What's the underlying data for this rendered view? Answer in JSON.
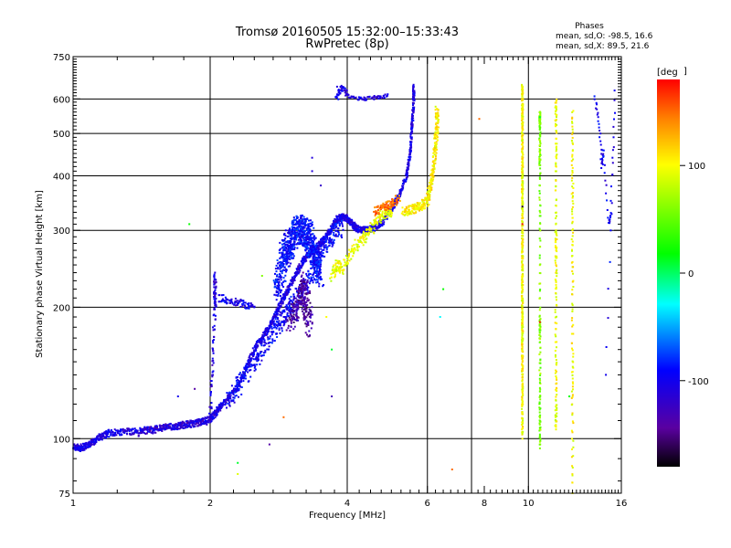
{
  "chart_data": {
    "type": "scatter",
    "title": "Tromsø 20160505 15:32:00–15:33:43",
    "subtitle": "RwPretec (8p)",
    "xlabel": "Frequency [MHz]",
    "ylabel": "Stationary phase Virtual Height [km]",
    "x_scale": "log",
    "y_scale": "log",
    "xlim": [
      1,
      16
    ],
    "ylim": [
      75,
      750
    ],
    "x_ticks": [
      {
        "value": 1,
        "label": "1"
      },
      {
        "value": 2,
        "label": "2"
      },
      {
        "value": 4,
        "label": "4"
      },
      {
        "value": 6,
        "label": "6"
      },
      {
        "value": 8,
        "label": "8"
      },
      {
        "value": 10,
        "label": "10"
      },
      {
        "value": 16,
        "label": "16"
      }
    ],
    "y_ticks": [
      {
        "value": 75,
        "label": "75"
      },
      {
        "value": 100,
        "label": "100"
      },
      {
        "value": 200,
        "label": "200"
      },
      {
        "value": 300,
        "label": "300"
      },
      {
        "value": 400,
        "label": "400"
      },
      {
        "value": 500,
        "label": "500"
      },
      {
        "value": 600,
        "label": "600"
      },
      {
        "value": 750,
        "label": "750"
      }
    ],
    "x_grid": [
      2,
      4,
      6,
      7.5,
      10
    ],
    "y_grid": [
      100,
      200,
      300,
      400,
      500,
      600
    ],
    "grid": true,
    "legend_title": "Phases",
    "legend_lines": [
      "mean, sd,O: -98.5, 16.6",
      "mean, sd,X:  89.5, 21.6"
    ],
    "legend_placement": "top-right",
    "colorbar": {
      "label": "[deg",
      "range": [
        -180,
        180
      ],
      "ticks": [
        {
          "value": 100,
          "label": "100"
        },
        {
          "value": 0,
          "label": "0"
        },
        {
          "value": -100,
          "label": "-100"
        }
      ]
    },
    "traces": [
      {
        "points": [
          [
            1.0,
            96
          ],
          [
            1.03,
            95
          ],
          [
            1.06,
            96
          ],
          [
            1.1,
            98
          ],
          [
            1.15,
            101
          ],
          [
            1.2,
            103
          ],
          [
            1.3,
            104
          ],
          [
            1.4,
            104
          ],
          [
            1.5,
            105
          ],
          [
            1.6,
            106
          ],
          [
            1.7,
            107
          ],
          [
            1.8,
            108
          ],
          [
            1.9,
            109
          ],
          [
            2.0,
            111
          ],
          [
            2.05,
            114
          ],
          [
            2.1,
            118
          ],
          [
            2.2,
            125
          ],
          [
            2.3,
            132
          ],
          [
            2.4,
            145
          ],
          [
            2.5,
            160
          ],
          [
            2.6,
            170
          ],
          [
            2.7,
            180
          ],
          [
            2.8,
            195
          ],
          [
            2.9,
            210
          ],
          [
            3.0,
            225
          ],
          [
            3.1,
            240
          ],
          [
            3.2,
            255
          ],
          [
            3.3,
            265
          ],
          [
            3.4,
            272
          ],
          [
            3.5,
            280
          ],
          [
            3.6,
            290
          ],
          [
            3.7,
            305
          ],
          [
            3.8,
            318
          ],
          [
            3.9,
            322
          ],
          [
            4.0,
            320
          ],
          [
            4.1,
            310
          ],
          [
            4.2,
            303
          ],
          [
            4.4,
            300
          ],
          [
            4.6,
            305
          ],
          [
            4.8,
            315
          ],
          [
            5.0,
            335
          ],
          [
            5.2,
            360
          ],
          [
            5.4,
            400
          ],
          [
            5.5,
            450
          ],
          [
            5.55,
            520
          ],
          [
            5.6,
            600
          ],
          [
            5.6,
            640
          ]
        ],
        "phase": -105,
        "spread": [
          0.004,
          0.018
        ],
        "copies": 4
      },
      {
        "points": [
          [
            1.4,
            103
          ],
          [
            1.6,
            106
          ],
          [
            1.8,
            108
          ],
          [
            2.0,
            110
          ]
        ],
        "phase": -120,
        "spread": [
          0.006,
          0.02
        ],
        "copies": 2
      },
      {
        "points": [
          [
            2.0,
            112
          ],
          [
            2.05,
            200
          ],
          [
            2.05,
            240
          ]
        ],
        "phase": -110,
        "spread": [
          0.006,
          0.02
        ],
        "copies": 5
      },
      {
        "points": [
          [
            2.1,
            210
          ],
          [
            2.3,
            205
          ],
          [
            2.5,
            200
          ]
        ],
        "phase": -100,
        "spread": [
          0.01,
          0.02
        ],
        "copies": 4
      },
      {
        "points": [
          [
            2.2,
            122
          ],
          [
            2.5,
            150
          ],
          [
            2.8,
            180
          ],
          [
            3.0,
            200
          ],
          [
            3.3,
            230
          ],
          [
            3.6,
            280
          ],
          [
            3.9,
            310
          ]
        ],
        "phase": -95,
        "spread": [
          0.015,
          0.05
        ],
        "copies": 8
      },
      {
        "points": [
          [
            2.8,
            220
          ],
          [
            2.9,
            260
          ],
          [
            3.0,
            280
          ],
          [
            3.1,
            300
          ],
          [
            3.2,
            300
          ],
          [
            3.3,
            290
          ],
          [
            3.4,
            260
          ],
          [
            3.5,
            240
          ]
        ],
        "phase": -90,
        "spread": [
          0.02,
          0.08
        ],
        "copies": 12
      },
      {
        "points": [
          [
            3.0,
            185
          ],
          [
            3.1,
            200
          ],
          [
            3.2,
            220
          ],
          [
            3.3,
            180
          ],
          [
            3.2,
            240
          ]
        ],
        "phase": -140,
        "spread": [
          0.02,
          0.05
        ],
        "copies": 6
      },
      {
        "points": [
          [
            3.8,
            600
          ],
          [
            3.9,
            640
          ],
          [
            4.0,
            610
          ],
          [
            4.3,
            600
          ],
          [
            4.6,
            605
          ],
          [
            4.9,
            610
          ]
        ],
        "phase": -105,
        "spread": [
          0.01,
          0.01
        ],
        "copies": 2
      },
      {
        "points": [
          [
            3.7,
            235
          ],
          [
            3.8,
            250
          ],
          [
            3.9,
            245
          ],
          [
            4.1,
            270
          ],
          [
            4.3,
            285
          ],
          [
            4.5,
            300
          ],
          [
            4.7,
            320
          ],
          [
            4.9,
            330
          ],
          [
            5.0,
            330
          ]
        ],
        "phase": 95,
        "spread": [
          0.01,
          0.03
        ],
        "copies": 3
      },
      {
        "points": [
          [
            4.6,
            330
          ],
          [
            4.8,
            340
          ],
          [
            5.0,
            345
          ],
          [
            5.2,
            355
          ]
        ],
        "phase": 150,
        "spread": [
          0.01,
          0.02
        ],
        "copies": 3
      },
      {
        "points": [
          [
            5.3,
            330
          ],
          [
            5.6,
            335
          ],
          [
            5.8,
            340
          ],
          [
            6.0,
            350
          ],
          [
            6.1,
            380
          ],
          [
            6.2,
            420
          ],
          [
            6.25,
            470
          ],
          [
            6.3,
            520
          ],
          [
            6.3,
            570
          ]
        ],
        "phase": 105,
        "spread": [
          0.008,
          0.025
        ],
        "copies": 4
      },
      {
        "points": [
          [
            9.7,
            640
          ],
          [
            9.7,
            600
          ],
          [
            9.7,
            550
          ],
          [
            9.7,
            500
          ],
          [
            9.7,
            450
          ],
          [
            9.7,
            400
          ],
          [
            9.7,
            370
          ],
          [
            9.7,
            330
          ],
          [
            9.7,
            290
          ],
          [
            9.7,
            260
          ],
          [
            9.7,
            230
          ],
          [
            9.7,
            200
          ],
          [
            9.7,
            180
          ],
          [
            9.7,
            160
          ],
          [
            9.7,
            140
          ],
          [
            9.7,
            120
          ],
          [
            9.7,
            100
          ]
        ],
        "phase": 100,
        "spread": [
          0.003,
          0.01
        ],
        "copies": 3
      },
      {
        "points": [
          [
            10.6,
            560
          ],
          [
            10.6,
            540
          ],
          [
            10.6,
            520
          ],
          [
            10.6,
            460
          ],
          [
            10.6,
            420
          ],
          [
            10.6,
            300
          ],
          [
            10.6,
            190
          ],
          [
            10.6,
            170
          ],
          [
            10.6,
            130
          ],
          [
            10.6,
            110
          ],
          [
            10.6,
            95
          ]
        ],
        "phase": 60,
        "spread": [
          0.003,
          0.01
        ],
        "copies": 2
      },
      {
        "points": [
          [
            11.5,
            600
          ],
          [
            11.5,
            520
          ],
          [
            11.5,
            420
          ],
          [
            11.5,
            300
          ],
          [
            11.5,
            260
          ],
          [
            11.5,
            210
          ],
          [
            11.5,
            150
          ],
          [
            11.5,
            120
          ],
          [
            11.5,
            105
          ]
        ],
        "phase": 95,
        "spread": [
          0.004,
          0.01
        ],
        "copies": 2
      },
      {
        "points": [
          [
            12.5,
            560
          ],
          [
            12.5,
            420
          ],
          [
            12.5,
            320
          ],
          [
            12.5,
            240
          ],
          [
            12.5,
            160
          ],
          [
            12.5,
            120
          ],
          [
            12.5,
            75
          ]
        ],
        "phase": 100,
        "spread": [
          0.004,
          0.01
        ],
        "copies": 2
      },
      {
        "points": [
          [
            14.0,
            610
          ],
          [
            14.3,
            530
          ],
          [
            14.5,
            420
          ],
          [
            14.6,
            460
          ],
          [
            15.0,
            310
          ],
          [
            15.2,
            330
          ],
          [
            15.5,
            630
          ],
          [
            14.8,
            140
          ]
        ],
        "phase": -100,
        "spread": [
          0.004,
          0.01
        ],
        "copies": 1
      }
    ],
    "outliers": [
      [
        1.8,
        310,
        20
      ],
      [
        2.7,
        97,
        -140
      ],
      [
        2.9,
        112,
        150
      ],
      [
        3.7,
        160,
        10
      ],
      [
        3.7,
        125,
        -130
      ],
      [
        2.3,
        88,
        10
      ],
      [
        2.3,
        83,
        90
      ],
      [
        6.8,
        85,
        150
      ],
      [
        7.8,
        540,
        150
      ],
      [
        6.5,
        220,
        20
      ],
      [
        6.4,
        190,
        -30
      ],
      [
        3.5,
        380,
        -120
      ],
      [
        3.8,
        640,
        -110
      ],
      [
        3.6,
        190,
        100
      ],
      [
        9.7,
        340,
        -170
      ],
      [
        9.7,
        310,
        175
      ],
      [
        10.6,
        185,
        175
      ],
      [
        10.6,
        545,
        10
      ],
      [
        12.3,
        125,
        20
      ],
      [
        14.4,
        500,
        -105
      ],
      [
        15.3,
        440,
        -100
      ],
      [
        3.35,
        440,
        -110
      ],
      [
        3.35,
        410,
        -110
      ],
      [
        2.6,
        236,
        60
      ],
      [
        1.7,
        125,
        -100
      ],
      [
        1.85,
        130,
        -140
      ]
    ]
  }
}
